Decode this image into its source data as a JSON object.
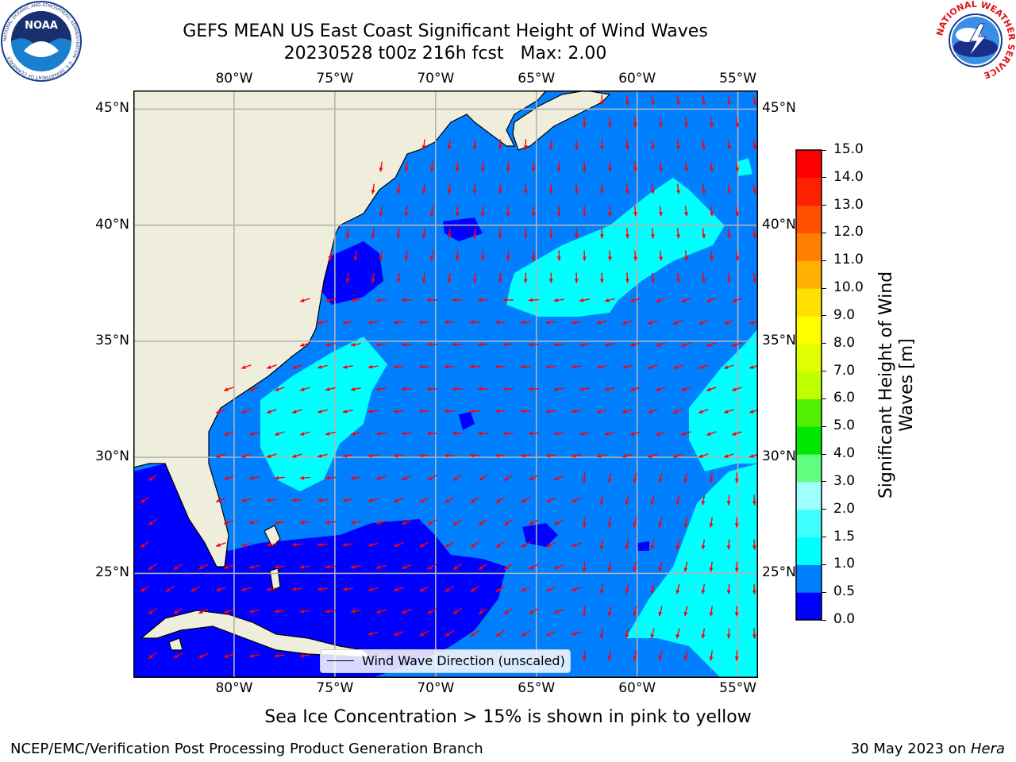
{
  "title": {
    "line1": "GEFS MEAN US East Coast Significant Height of Wind Waves",
    "line2": "20230528 t00z 216h fcst   Max: 2.00"
  },
  "map": {
    "lon_range": [
      -85,
      -54
    ],
    "lat_range": [
      20.5,
      45.8
    ],
    "lon_ticks": [
      {
        "value": -80,
        "label": "80°W"
      },
      {
        "value": -75,
        "label": "75°W"
      },
      {
        "value": -70,
        "label": "70°W"
      },
      {
        "value": -65,
        "label": "65°W"
      },
      {
        "value": -60,
        "label": "60°W"
      },
      {
        "value": -55,
        "label": "55°W"
      }
    ],
    "lat_ticks": [
      {
        "value": 45,
        "label": "45°N"
      },
      {
        "value": 40,
        "label": "40°N"
      },
      {
        "value": 35,
        "label": "35°N"
      },
      {
        "value": 30,
        "label": "30°N"
      },
      {
        "value": 25,
        "label": "25°N"
      }
    ],
    "colors": {
      "land": "#efeedc",
      "grid": "#b3b3b3",
      "arrow": "#ff0000",
      "coast": "#000000"
    }
  },
  "legend": {
    "label": "Wind Wave Direction (unscaled)"
  },
  "colorbar": {
    "label": "Significant Height of Wind Waves [m]",
    "ticks": [
      "0.0",
      "0.5",
      "1.0",
      "1.5",
      "2.0",
      "3.0",
      "4.0",
      "5.0",
      "6.0",
      "7.0",
      "8.0",
      "9.0",
      "10.0",
      "11.0",
      "12.0",
      "13.0",
      "14.0",
      "15.0"
    ],
    "colors": [
      "#0000ff",
      "#0080ff",
      "#00ffff",
      "#40ffff",
      "#a0ffff",
      "#60ff80",
      "#00e800",
      "#50f000",
      "#c0ff00",
      "#e0ff00",
      "#ffff00",
      "#ffe000",
      "#ffb000",
      "#ff8000",
      "#ff5000",
      "#ff2000",
      "#ff0000"
    ]
  },
  "note": "Sea Ice Concentration > 15% is shown in pink to yellow",
  "footer": {
    "left": "NCEP/EMC/Verification Post Processing Product Generation Branch",
    "date": "30 May 2023 on ",
    "machine": "Hera"
  },
  "logos": {
    "noaa_text": "NOAA",
    "noaa_ring": "NATIONAL OCEANIC AND ATMOSPHERIC ADMINISTRATION · U.S. DEPARTMENT OF COMMERCE ·",
    "nws_ring": "NATIONAL WEATHER SERVICE"
  }
}
